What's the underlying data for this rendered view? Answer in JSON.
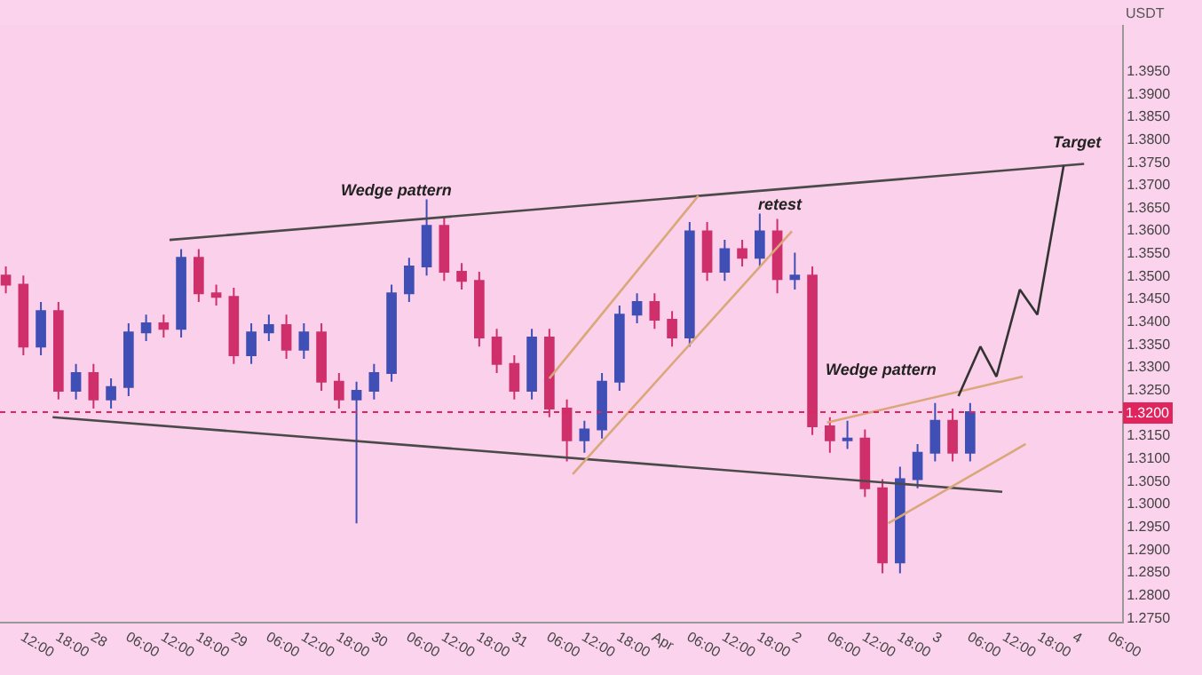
{
  "chart_data": {
    "type": "candlestick",
    "ylabel": "USDT",
    "x": [
      "--03-27T09:00",
      "--03-27T12:00",
      "--03-27T15:00",
      "--03-27T18:00",
      "--03-27T21:00",
      "--03-28T00:00",
      "--03-28T03:00",
      "--03-28T06:00",
      "--03-28T09:00",
      "--03-28T12:00",
      "--03-28T15:00",
      "--03-28T18:00",
      "--03-28T21:00",
      "--03-29T00:00",
      "--03-29T03:00",
      "--03-29T06:00",
      "--03-29T09:00",
      "--03-29T12:00",
      "--03-29T15:00",
      "--03-29T18:00",
      "--03-29T21:00",
      "--03-30T00:00",
      "--03-30T03:00",
      "--03-30T06:00",
      "--03-30T09:00",
      "--03-30T12:00",
      "--03-30T15:00",
      "--03-30T18:00",
      "--03-30T21:00",
      "--03-31T00:00",
      "--03-31T03:00",
      "--03-31T06:00",
      "--03-31T09:00",
      "--03-31T12:00",
      "--03-31T15:00",
      "--03-31T18:00",
      "--03-31T21:00",
      "--04-01T00:00",
      "--04-01T03:00",
      "--04-01T06:00",
      "--04-01T09:00",
      "--04-01T12:00",
      "--04-01T15:00",
      "--04-01T18:00",
      "--04-01T21:00",
      "--04-02T00:00",
      "--04-02T03:00",
      "--04-02T06:00",
      "--04-02T09:00",
      "--04-02T12:00",
      "--04-02T15:00",
      "--04-02T18:00",
      "--04-02T21:00",
      "--04-03T00:00",
      "--04-03T03:00",
      "--04-03T06:00"
    ],
    "ohlc": [
      [
        1.35,
        1.352,
        1.3461,
        1.348
      ],
      [
        1.348,
        1.35,
        1.3325,
        1.3344
      ],
      [
        1.3344,
        1.3442,
        1.3325,
        1.3422
      ],
      [
        1.3422,
        1.3442,
        1.3228,
        1.3247
      ],
      [
        1.3247,
        1.3306,
        1.3228,
        1.3286
      ],
      [
        1.3286,
        1.3306,
        1.3208,
        1.3228
      ],
      [
        1.3228,
        1.3274,
        1.3208,
        1.3255
      ],
      [
        1.3255,
        1.3395,
        1.3235,
        1.3375
      ],
      [
        1.3375,
        1.3414,
        1.3356,
        1.3395
      ],
      [
        1.3395,
        1.3414,
        1.3364,
        1.3383
      ],
      [
        1.3383,
        1.3558,
        1.3364,
        1.3539
      ],
      [
        1.3539,
        1.3558,
        1.3442,
        1.3461
      ],
      [
        1.3461,
        1.348,
        1.3434,
        1.3453
      ],
      [
        1.3453,
        1.3473,
        1.3306,
        1.3325
      ],
      [
        1.3325,
        1.3395,
        1.3306,
        1.3375
      ],
      [
        1.3375,
        1.3414,
        1.3356,
        1.3391
      ],
      [
        1.3391,
        1.3414,
        1.3317,
        1.3337
      ],
      [
        1.3337,
        1.3395,
        1.3317,
        1.3375
      ],
      [
        1.3375,
        1.3395,
        1.3247,
        1.3267
      ],
      [
        1.3267,
        1.3286,
        1.3208,
        1.3228
      ],
      [
        1.3228,
        1.3267,
        1.2956,
        1.3247
      ],
      [
        1.3247,
        1.3306,
        1.3228,
        1.3286
      ],
      [
        1.3286,
        1.348,
        1.3267,
        1.3461
      ],
      [
        1.3461,
        1.3539,
        1.3442,
        1.352
      ],
      [
        1.352,
        1.3667,
        1.35,
        1.3609
      ],
      [
        1.3609,
        1.3628,
        1.3488,
        1.3508
      ],
      [
        1.3508,
        1.3527,
        1.3469,
        1.3488
      ],
      [
        1.3488,
        1.3508,
        1.3344,
        1.3364
      ],
      [
        1.3364,
        1.3383,
        1.3286,
        1.3306
      ],
      [
        1.3306,
        1.3325,
        1.3228,
        1.3247
      ],
      [
        1.3247,
        1.3383,
        1.3228,
        1.3364
      ],
      [
        1.3364,
        1.3383,
        1.3189,
        1.3208
      ],
      [
        1.3208,
        1.3228,
        1.3092,
        1.3138
      ],
      [
        1.3138,
        1.3181,
        1.3111,
        1.3162
      ],
      [
        1.3162,
        1.3286,
        1.3142,
        1.3267
      ],
      [
        1.3267,
        1.3434,
        1.3247,
        1.3414
      ],
      [
        1.3414,
        1.3461,
        1.3395,
        1.3442
      ],
      [
        1.3442,
        1.3461,
        1.3383,
        1.3403
      ],
      [
        1.3403,
        1.3422,
        1.3344,
        1.3364
      ],
      [
        1.3364,
        1.3617,
        1.3344,
        1.3597
      ],
      [
        1.3597,
        1.3617,
        1.3488,
        1.3508
      ],
      [
        1.3508,
        1.3578,
        1.3488,
        1.3558
      ],
      [
        1.3558,
        1.3578,
        1.352,
        1.3539
      ],
      [
        1.3539,
        1.3636,
        1.352,
        1.3597
      ],
      [
        1.3597,
        1.3624,
        1.3461,
        1.3492
      ],
      [
        1.3492,
        1.355,
        1.3469,
        1.35
      ],
      [
        1.35,
        1.352,
        1.315,
        1.3169
      ],
      [
        1.3169,
        1.3189,
        1.3111,
        1.3138
      ],
      [
        1.3138,
        1.3181,
        1.3119,
        1.3142
      ],
      [
        1.3142,
        1.3162,
        1.3014,
        1.3033
      ],
      [
        1.3033,
        1.3053,
        1.2846,
        1.287
      ],
      [
        1.287,
        1.308,
        1.2846,
        1.3053
      ],
      [
        1.3053,
        1.313,
        1.3033,
        1.3111
      ],
      [
        1.3111,
        1.322,
        1.3092,
        1.3181
      ],
      [
        1.3181,
        1.3208,
        1.3092,
        1.3111
      ],
      [
        1.3111,
        1.322,
        1.3092,
        1.32
      ]
    ],
    "colors": [
      "#cf2f6b",
      "#cf2f6b",
      "#3f4fb5",
      "#cf2f6b",
      "#3f4fb5",
      "#cf2f6b",
      "#3f4fb5",
      "#3f4fb5",
      "#3f4fb5",
      "#cf2f6b",
      "#3f4fb5",
      "#cf2f6b",
      "#cf2f6b",
      "#cf2f6b",
      "#3f4fb5",
      "#3f4fb5",
      "#cf2f6b",
      "#3f4fb5",
      "#cf2f6b",
      "#cf2f6b",
      "#3f4fb5",
      "#3f4fb5",
      "#3f4fb5",
      "#3f4fb5",
      "#3f4fb5",
      "#cf2f6b",
      "#cf2f6b",
      "#cf2f6b",
      "#cf2f6b",
      "#cf2f6b",
      "#3f4fb5",
      "#cf2f6b",
      "#cf2f6b",
      "#3f4fb5",
      "#3f4fb5",
      "#3f4fb5",
      "#3f4fb5",
      "#cf2f6b",
      "#cf2f6b",
      "#3f4fb5",
      "#cf2f6b",
      "#3f4fb5",
      "#cf2f6b",
      "#3f4fb5",
      "#cf2f6b",
      "#3f4fb5",
      "#cf2f6b",
      "#cf2f6b",
      "#3f4fb5",
      "#cf2f6b",
      "#cf2f6b",
      "#3f4fb5",
      "#3f4fb5",
      "#3f4fb5",
      "#cf2f6b",
      "#3f4fb5"
    ],
    "series": [
      {
        "type": "line",
        "color": "#4a4a4a",
        "x": [
          "--03-28T13:00",
          "--04-04T01:30"
        ],
        "values": [
          1.3578,
          1.3745
        ]
      },
      {
        "type": "line",
        "color": "#4a4a4a",
        "x": [
          "--03-27T17:00",
          "--04-03T11:30"
        ],
        "values": [
          1.3189,
          1.3025
        ]
      },
      {
        "type": "line",
        "color": "#d9a77a",
        "x": [
          "--03-31T06:00",
          "--04-01T07:30"
        ],
        "values": [
          1.3274,
          1.3675
        ]
      },
      {
        "type": "line",
        "color": "#d9a77a",
        "x": [
          "--03-31T10:00",
          "--04-01T23:30"
        ],
        "values": [
          1.3064,
          1.3597
        ]
      },
      {
        "type": "line",
        "color": "#d9a77a",
        "x": [
          "--04-02T05:30",
          "--04-03T15:00"
        ],
        "values": [
          1.3177,
          1.3278
        ]
      },
      {
        "type": "line",
        "color": "#d9a77a",
        "x": [
          "--04-02T16:00",
          "--04-03T15:30"
        ],
        "values": [
          1.2956,
          1.313
        ]
      },
      {
        "type": "line",
        "color": "#333333",
        "x": [
          "--04-03T04:00",
          "--04-03T07:45",
          "--04-03T10:30",
          "--04-03T14:30",
          "--04-03T17:30",
          "--04-03T22:00"
        ],
        "values": [
          1.3235,
          1.3344,
          1.3278,
          1.3469,
          1.3414,
          1.3741
        ]
      }
    ],
    "annotations": [
      "Wedge pattern",
      "retest",
      "Wedge pattern",
      "Target"
    ],
    "ref_lines": [
      {
        "axis": "y",
        "value": 1.32,
        "label": "1.3200",
        "color": "#e0245e",
        "line_style": "dotted"
      }
    ],
    "xlim": [
      "--03-27T08:00",
      "--04-04T08:00"
    ],
    "xticks": [
      {
        "value": "--03-27T12:00",
        "label": "12:00"
      },
      {
        "value": "--03-27T18:00",
        "label": "18:00"
      },
      {
        "value": "--03-28T00:00",
        "label": "28"
      },
      {
        "value": "--03-28T06:00",
        "label": "06:00"
      },
      {
        "value": "--03-28T12:00",
        "label": "12:00"
      },
      {
        "value": "--03-28T18:00",
        "label": "18:00"
      },
      {
        "value": "--03-29T00:00",
        "label": "29"
      },
      {
        "value": "--03-29T06:00",
        "label": "06:00"
      },
      {
        "value": "--03-29T12:00",
        "label": "12:00"
      },
      {
        "value": "--03-29T18:00",
        "label": "18:00"
      },
      {
        "value": "--03-30T00:00",
        "label": "30"
      },
      {
        "value": "--03-30T06:00",
        "label": "06:00"
      },
      {
        "value": "--03-30T12:00",
        "label": "12:00"
      },
      {
        "value": "--03-30T18:00",
        "label": "18:00"
      },
      {
        "value": "--03-31T00:00",
        "label": "31"
      },
      {
        "value": "--03-31T06:00",
        "label": "06:00"
      },
      {
        "value": "--03-31T12:00",
        "label": "12:00"
      },
      {
        "value": "--03-31T18:00",
        "label": "18:00"
      },
      {
        "value": "--04-01T00:00",
        "label": "Apr"
      },
      {
        "value": "--04-01T06:00",
        "label": "06:00"
      },
      {
        "value": "--04-01T12:00",
        "label": "12:00"
      },
      {
        "value": "--04-01T18:00",
        "label": "18:00"
      },
      {
        "value": "--04-02T00:00",
        "label": "2"
      },
      {
        "value": "--04-02T06:00",
        "label": "06:00"
      },
      {
        "value": "--04-02T12:00",
        "label": "12:00"
      },
      {
        "value": "--04-02T18:00",
        "label": "18:00"
      },
      {
        "value": "--04-03T00:00",
        "label": "3"
      },
      {
        "value": "--04-03T06:00",
        "label": "06:00"
      },
      {
        "value": "--04-03T12:00",
        "label": "12:00"
      },
      {
        "value": "--04-03T18:00",
        "label": "18:00"
      },
      {
        "value": "--04-04T00:00",
        "label": "4"
      },
      {
        "value": "--04-04T06:00",
        "label": "06:00"
      }
    ],
    "ylim": [
      1.274,
      1.405
    ],
    "yticks": [
      {
        "value": 1.275,
        "label": "1.2750"
      },
      {
        "value": 1.28,
        "label": "1.2800"
      },
      {
        "value": 1.285,
        "label": "1.2850"
      },
      {
        "value": 1.29,
        "label": "1.2900"
      },
      {
        "value": 1.295,
        "label": "1.2950"
      },
      {
        "value": 1.3,
        "label": "1.3000"
      },
      {
        "value": 1.305,
        "label": "1.3050"
      },
      {
        "value": 1.31,
        "label": "1.3100"
      },
      {
        "value": 1.315,
        "label": "1.3150"
      },
      {
        "value": 1.325,
        "label": "1.3250"
      },
      {
        "value": 1.33,
        "label": "1.3300"
      },
      {
        "value": 1.335,
        "label": "1.3350"
      },
      {
        "value": 1.34,
        "label": "1.3400"
      },
      {
        "value": 1.345,
        "label": "1.3450"
      },
      {
        "value": 1.35,
        "label": "1.3500"
      },
      {
        "value": 1.355,
        "label": "1.3550"
      },
      {
        "value": 1.36,
        "label": "1.3600"
      },
      {
        "value": 1.365,
        "label": "1.3650"
      },
      {
        "value": 1.37,
        "label": "1.3700"
      },
      {
        "value": 1.375,
        "label": "1.3750"
      },
      {
        "value": 1.38,
        "label": "1.3800"
      },
      {
        "value": 1.385,
        "label": "1.3850"
      },
      {
        "value": 1.39,
        "label": "1.3900"
      },
      {
        "value": 1.395,
        "label": "1.3950"
      }
    ]
  }
}
